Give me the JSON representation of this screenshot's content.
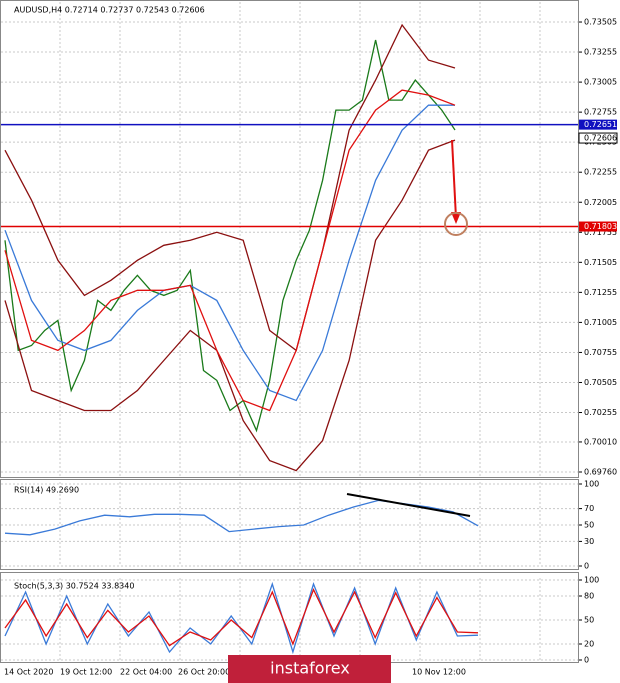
{
  "chart_data": [
    {
      "type": "line",
      "title": "AUDUSD,H4  0.72714 0.72737 0.72543 0.72606",
      "ylim": [
        0.6971,
        0.73655
      ],
      "yticks": [
        0.73505,
        0.73255,
        0.73005,
        0.72755,
        0.72505,
        0.72255,
        0.72005,
        0.71755,
        0.71505,
        0.71255,
        0.71005,
        0.70755,
        0.70505,
        0.70255,
        {
          "value": 0.7001,
          "label": "0.70010"
        },
        {
          "value": 0.6976,
          "label": "0.69760"
        }
      ],
      "grid": true,
      "series": [
        {
          "color": "#1a7a1a",
          "values": [
            0.71688,
            0.70772,
            0.70813,
            0.70938,
            0.71022,
            0.70438,
            0.70688,
            0.71188,
            0.71105,
            0.71272,
            0.71397,
            0.71272,
            0.7123,
            0.71272,
            0.71438,
            0.70605,
            0.70522,
            0.70272,
            0.70355,
            0.70105,
            0.70522,
            0.71188,
            0.71522,
            0.71772,
            0.72188,
            0.72772,
            0.72772,
            0.72855,
            0.73355,
            0.72855,
            0.72855,
            0.73022,
            0.72897,
            0.72772,
            0.72606
          ]
        },
        {
          "color": "#8b1010",
          "values": [
            0.72438,
            0.72022,
            0.71522,
            0.7123,
            0.71355,
            0.71522,
            0.71647,
            0.71688,
            0.71755,
            0.71688,
            0.70938,
            0.70772,
            0.71605,
            0.72605,
            0.73022,
            0.7348,
            0.73188,
            0.73122
          ]
        },
        {
          "color": "#8b1010",
          "values": [
            0.71188,
            0.70438,
            0.70355,
            0.70272,
            0.70272,
            0.70438,
            0.70688,
            0.70938,
            0.70772,
            0.70188,
            0.69855,
            0.69772,
            0.70022,
            0.70688,
            0.71688,
            0.72022,
            0.72438,
            0.72522
          ]
        },
        {
          "color": "#3a7ad8",
          "values": [
            0.71772,
            0.71188,
            0.70855,
            0.70772,
            0.70855,
            0.71105,
            0.71272,
            0.71313,
            0.71188,
            0.70772,
            0.70438,
            0.70355,
            0.70772,
            0.71522,
            0.72188,
            0.72605,
            0.72813,
            0.72813
          ]
        },
        {
          "color": "#e01010",
          "values": [
            0.71605,
            0.70855,
            0.70772,
            0.70938,
            0.71188,
            0.71272,
            0.71272,
            0.71313,
            0.70772,
            0.70355,
            0.70272,
            0.70772,
            0.71605,
            0.72438,
            0.72772,
            0.72938,
            0.72897,
            0.72813
          ]
        }
      ],
      "levels": [
        {
          "value": 0.72651,
          "color": "#1010c0"
        },
        {
          "value": 0.71803,
          "color": "#e00000"
        }
      ],
      "last_price": 0.72606
    },
    {
      "type": "line",
      "title": "RSI(14) 49.2690",
      "ylim": [
        0,
        100
      ],
      "yticks": [
        100,
        70,
        50,
        30,
        0
      ],
      "grid": true,
      "series": [
        {
          "color": "#3a7ad8",
          "values": [
            40,
            38,
            45,
            55,
            62,
            60,
            63,
            63,
            62,
            42,
            45,
            48,
            50,
            62,
            72,
            80,
            76,
            72,
            66,
            49
          ]
        }
      ]
    },
    {
      "type": "line",
      "title": "Stoch(5,3,3) 30.7524 33.8340",
      "ylim": [
        0,
        100
      ],
      "yticks": [
        100,
        80,
        50,
        20,
        0
      ],
      "grid": true,
      "series": [
        {
          "color": "#3a7ad8",
          "values": [
            30,
            85,
            20,
            80,
            20,
            70,
            30,
            60,
            10,
            40,
            20,
            55,
            20,
            95,
            10,
            95,
            30,
            90,
            20,
            90,
            25,
            85,
            30,
            31
          ]
        },
        {
          "color": "#e01010",
          "values": [
            40,
            75,
            30,
            70,
            28,
            62,
            35,
            55,
            18,
            35,
            25,
            50,
            28,
            85,
            20,
            88,
            35,
            85,
            28,
            84,
            30,
            78,
            35,
            34
          ]
        }
      ]
    }
  ],
  "time_axis": {
    "labels": [
      "14 Oct 2020",
      "19 Oct 12:00",
      "22 Oct 04:00",
      "26 Oct 20:00",
      "10 Nov 12:00"
    ]
  },
  "watermark": "instaforex"
}
